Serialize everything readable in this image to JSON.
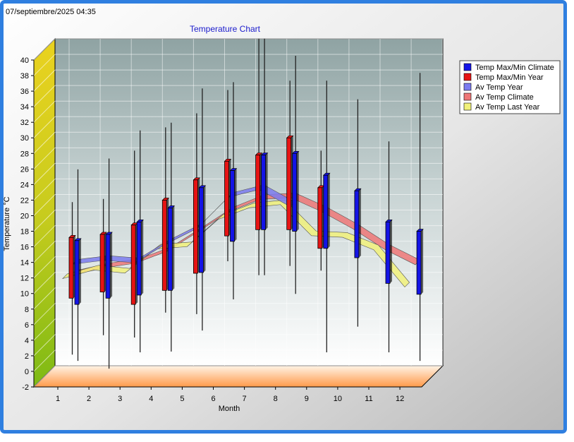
{
  "timestamp": "07/septiembre/2025 04:35",
  "colors": {
    "frame_border": "#2f7fe0",
    "title": "#1a1acc",
    "climate_box": "#1414e6",
    "year_box": "#e61414",
    "av_year": "#7b7bef",
    "av_climate": "#ee7777",
    "av_last_year": "#f1f17a"
  },
  "chart_data": {
    "type": "box-3d",
    "title": "Temperature Chart",
    "xlabel": "Month",
    "ylabel": "Temperature °C",
    "categories": [
      "1",
      "2",
      "3",
      "4",
      "5",
      "6",
      "7",
      "8",
      "9",
      "10",
      "11",
      "12"
    ],
    "ylim": [
      -2,
      40
    ],
    "yticks": [
      -2,
      0,
      2,
      4,
      6,
      8,
      10,
      12,
      14,
      16,
      18,
      20,
      22,
      24,
      26,
      28,
      30,
      32,
      34,
      36,
      38,
      40
    ],
    "grid": true,
    "legend_position": "top-right",
    "legend": [
      "Temp Max/Min Climate",
      "Temp Max/Min Year",
      "Av Temp Year",
      "Av Temp Climate",
      "Av Temp Last Year"
    ],
    "climate_series": {
      "name": "Temp Max/Min Climate",
      "box_low": [
        8.6,
        9.4,
        9.8,
        10.4,
        12.7,
        16.7,
        18.2,
        18.0,
        15.8,
        14.6,
        11.3,
        9.9
      ],
      "box_high": [
        16.8,
        17.6,
        19.2,
        21.0,
        23.6,
        25.8,
        27.8,
        28.0,
        25.2,
        23.2,
        19.2,
        18.0
      ],
      "whisker_low": [
        1.2,
        0.2,
        2.3,
        2.4,
        5.1,
        9.1,
        12.2,
        9.8,
        2.3,
        5.6,
        2.3,
        1.2
      ],
      "whisker_high": [
        25.8,
        27.2,
        30.8,
        31.8,
        36.2,
        37.0,
        42.6,
        40.4,
        37.2,
        34.8,
        29.4,
        38.2
      ]
    },
    "year_series": {
      "name": "Temp Max/Min Year",
      "box_low": [
        9.4,
        10.2,
        8.6,
        10.4,
        12.6,
        17.4,
        18.2,
        18.2,
        15.8
      ],
      "box_high": [
        17.2,
        17.6,
        18.8,
        22.0,
        24.6,
        27.0,
        27.8,
        30.0,
        23.6
      ],
      "whisker_low": [
        2.0,
        4.5,
        4.2,
        7.4,
        7.2,
        14.0,
        12.2,
        13.4,
        12.8
      ],
      "whisker_high": [
        21.6,
        22.0,
        28.2,
        31.2,
        33.0,
        36.0,
        42.6,
        37.2,
        28.2
      ]
    },
    "av_temp_year": [
      12.4,
      12.9,
      12.6,
      15.0,
      17.0,
      21.0,
      22.0,
      19.8
    ],
    "av_temp_climate": [
      11.5,
      12.4,
      13.0,
      14.5,
      17.0,
      19.6,
      21.2,
      21.4,
      19.6,
      17.4,
      14.8,
      12.8
    ],
    "av_temp_last_year": [
      11.3,
      12.4,
      12.0,
      15.1,
      15.4,
      18.9,
      20.4,
      20.8,
      16.8,
      16.6,
      15.0,
      10.2
    ]
  }
}
